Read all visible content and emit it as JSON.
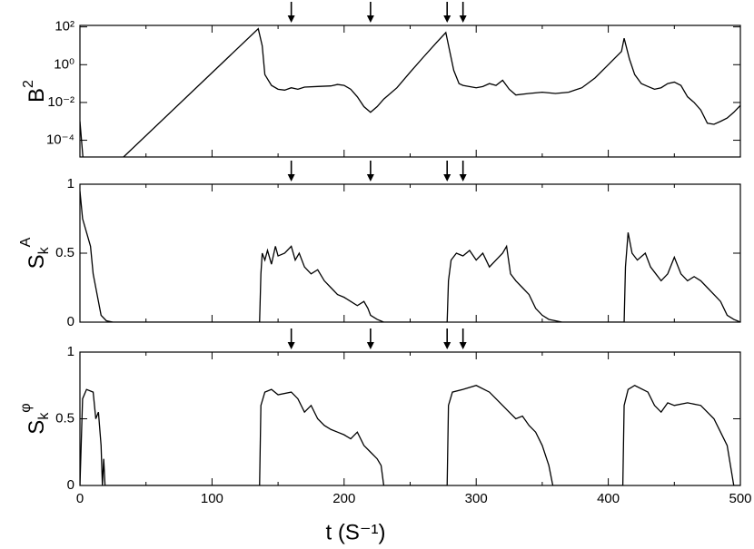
{
  "chart_data": [
    {
      "type": "line",
      "ylog": true,
      "color": "#000000",
      "y_label": {
        "base": "B",
        "sup": "2"
      },
      "xlim": [
        0,
        500
      ],
      "xtick_marks": [
        0,
        100,
        200,
        300,
        400,
        500
      ],
      "xminor": [
        50,
        150,
        250,
        350,
        450
      ],
      "ylim": [
        1.3e-05,
        120
      ],
      "yticks": [
        {
          "value": 100,
          "label": "10²"
        },
        {
          "value": 1,
          "label": "10⁰"
        },
        {
          "value": 0.01,
          "label": "10⁻²"
        },
        {
          "value": 0.0001,
          "label": "10⁻⁴"
        }
      ],
      "arrows_x": [
        160,
        220,
        278,
        290
      ],
      "x": [
        0,
        3,
        10,
        33,
        135,
        138,
        140,
        145,
        150,
        155,
        160,
        165,
        170,
        180,
        190,
        195,
        200,
        205,
        210,
        215,
        220,
        225,
        230,
        240,
        250,
        260,
        270,
        277,
        280,
        283,
        287,
        290,
        300,
        305,
        310,
        315,
        320,
        325,
        330,
        340,
        350,
        360,
        370,
        380,
        390,
        400,
        410,
        412,
        416,
        420,
        425,
        430,
        435,
        440,
        445,
        450,
        455,
        460,
        465,
        470,
        475,
        480,
        485,
        490,
        495,
        500
      ],
      "values": [
        0.001,
        3e-06,
        4e-07,
        1.3e-05,
        80,
        10,
        0.3,
        0.08,
        0.05,
        0.045,
        0.06,
        0.05,
        0.065,
        0.07,
        0.075,
        0.09,
        0.08,
        0.05,
        0.02,
        0.006,
        0.003,
        0.006,
        0.015,
        0.06,
        0.4,
        2.5,
        15,
        50,
        5,
        0.5,
        0.1,
        0.08,
        0.06,
        0.07,
        0.1,
        0.08,
        0.15,
        0.05,
        0.025,
        0.03,
        0.035,
        0.03,
        0.035,
        0.06,
        0.2,
        1,
        5,
        25,
        2,
        0.3,
        0.1,
        0.07,
        0.05,
        0.06,
        0.1,
        0.12,
        0.08,
        0.02,
        0.01,
        0.004,
        0.0008,
        0.0007,
        0.001,
        0.0015,
        0.003,
        0.007
      ]
    },
    {
      "type": "line",
      "ylog": false,
      "color": "#000000",
      "y_label": {
        "base": "S",
        "sub": "k",
        "sup": "A"
      },
      "xlim": [
        0,
        500
      ],
      "xtick_marks": [
        0,
        100,
        200,
        300,
        400,
        500
      ],
      "xminor": [
        50,
        150,
        250,
        350,
        450
      ],
      "ylim": [
        0,
        1
      ],
      "yticks": [
        0,
        0.5,
        1
      ],
      "arrows_x": [
        160,
        220,
        278,
        290
      ],
      "x": [
        0,
        2,
        5,
        8,
        10,
        12,
        14,
        16,
        20,
        25,
        136,
        137,
        138,
        140,
        142,
        145,
        148,
        150,
        155,
        160,
        163,
        166,
        170,
        175,
        180,
        185,
        190,
        195,
        200,
        205,
        210,
        215,
        218,
        220,
        225,
        230,
        278,
        279,
        281,
        285,
        290,
        295,
        300,
        305,
        310,
        315,
        320,
        323,
        326,
        330,
        335,
        340,
        345,
        350,
        355,
        365,
        412,
        413,
        415,
        418,
        422,
        428,
        432,
        436,
        440,
        445,
        450,
        455,
        460,
        465,
        470,
        475,
        480,
        485,
        490,
        495,
        500
      ],
      "values": [
        0.95,
        0.75,
        0.65,
        0.55,
        0.35,
        0.25,
        0.15,
        0.05,
        0.01,
        0,
        0,
        0.35,
        0.5,
        0.45,
        0.52,
        0.42,
        0.55,
        0.48,
        0.5,
        0.55,
        0.45,
        0.5,
        0.4,
        0.35,
        0.38,
        0.3,
        0.25,
        0.2,
        0.18,
        0.15,
        0.12,
        0.15,
        0.1,
        0.05,
        0.02,
        0,
        0,
        0.3,
        0.45,
        0.5,
        0.48,
        0.52,
        0.45,
        0.5,
        0.4,
        0.45,
        0.5,
        0.55,
        0.35,
        0.3,
        0.25,
        0.2,
        0.1,
        0.05,
        0.02,
        0,
        0,
        0.4,
        0.65,
        0.5,
        0.45,
        0.5,
        0.4,
        0.35,
        0.3,
        0.35,
        0.47,
        0.35,
        0.3,
        0.33,
        0.3,
        0.25,
        0.2,
        0.15,
        0.05,
        0.02,
        0
      ]
    },
    {
      "type": "line",
      "ylog": false,
      "color": "#000000",
      "y_label": {
        "base": "S",
        "sub": "k",
        "sup": "φ"
      },
      "x_label": "t (S⁻¹)",
      "xlim": [
        0,
        500
      ],
      "xticks": [
        0,
        100,
        200,
        300,
        400,
        500
      ],
      "xminor": [
        50,
        150,
        250,
        350,
        450
      ],
      "ylim": [
        0,
        1
      ],
      "yticks": [
        0,
        0.5,
        1
      ],
      "arrows_x": [
        160,
        220,
        278,
        290
      ],
      "x": [
        0,
        2,
        5,
        10,
        12,
        14,
        16,
        17,
        18,
        19,
        136,
        137,
        140,
        145,
        150,
        160,
        165,
        170,
        175,
        180,
        185,
        190,
        195,
        200,
        205,
        210,
        215,
        220,
        225,
        228,
        230,
        278,
        279,
        282,
        290,
        300,
        310,
        315,
        320,
        325,
        330,
        335,
        340,
        345,
        350,
        355,
        358,
        411,
        412,
        415,
        420,
        430,
        435,
        440,
        445,
        450,
        460,
        470,
        480,
        485,
        490,
        495,
        500
      ],
      "values": [
        0,
        0.65,
        0.72,
        0.7,
        0.5,
        0.55,
        0.3,
        0,
        0.2,
        0,
        0,
        0.6,
        0.7,
        0.72,
        0.68,
        0.7,
        0.65,
        0.55,
        0.6,
        0.5,
        0.45,
        0.42,
        0.4,
        0.38,
        0.35,
        0.4,
        0.3,
        0.25,
        0.2,
        0.15,
        0,
        0,
        0.6,
        0.7,
        0.72,
        0.75,
        0.7,
        0.65,
        0.6,
        0.55,
        0.5,
        0.52,
        0.45,
        0.4,
        0.3,
        0.15,
        0,
        0,
        0.6,
        0.72,
        0.75,
        0.7,
        0.6,
        0.55,
        0.62,
        0.6,
        0.62,
        0.6,
        0.5,
        0.4,
        0.3,
        0,
        0
      ]
    }
  ]
}
